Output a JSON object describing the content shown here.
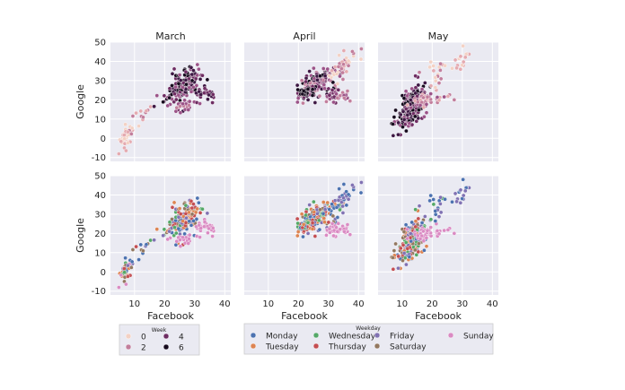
{
  "chart_data": {
    "type": "scatter",
    "grid": true,
    "xlabel": "Facebook",
    "ylabel": "Google",
    "xlim": [
      2,
      42
    ],
    "ylim": [
      -12,
      50
    ],
    "xticks": [
      10,
      20,
      30,
      40
    ],
    "yticks": [
      -10,
      0,
      10,
      20,
      30,
      40,
      50
    ],
    "columns": [
      "March",
      "April",
      "May"
    ],
    "rows": [
      {
        "hue": "week",
        "legend_title": "Week"
      },
      {
        "hue": "weekday",
        "legend_title": "Weekday"
      }
    ],
    "week_legend": {
      "title": "Week",
      "entries": [
        {
          "label": "0",
          "color": "#f3d1c4"
        },
        {
          "label": "2",
          "color": "#c27e9c"
        },
        {
          "label": "4",
          "color": "#6e2c62"
        },
        {
          "label": "6",
          "color": "#160a1d"
        }
      ],
      "palette": [
        "#f3d1c4",
        "#e4aab0",
        "#c27e9c",
        "#9b5388",
        "#6e2c62",
        "#3e1844",
        "#160a1d"
      ]
    },
    "weekday_legend": {
      "title": "Weekday",
      "entries": [
        {
          "label": "Monday",
          "color": "#4c72b0"
        },
        {
          "label": "Tuesday",
          "color": "#dd8452"
        },
        {
          "label": "Wednesday",
          "color": "#55a868"
        },
        {
          "label": "Thursday",
          "color": "#c44e52"
        },
        {
          "label": "Friday",
          "color": "#8172b3"
        },
        {
          "label": "Saturday",
          "color": "#937860"
        },
        {
          "label": "Sunday",
          "color": "#da8bc3"
        }
      ]
    },
    "clusters": {
      "March": [
        {
          "cx": 7,
          "cy": 1,
          "sx": 1.2,
          "sy": 3,
          "rho": 0.2,
          "n": 30,
          "week": [
            0,
            1
          ],
          "weekday": [
            0,
            1,
            2,
            3,
            4,
            5,
            6
          ]
        },
        {
          "cx": 9,
          "cy": 6,
          "sx": 1.0,
          "sy": 3,
          "rho": 0.5,
          "n": 12,
          "week": [
            0,
            1,
            2
          ],
          "weekday": [
            0,
            1,
            2,
            3,
            4,
            5,
            6
          ]
        },
        {
          "cx": 13,
          "cy": 13,
          "sx": 1.0,
          "sy": 2,
          "rho": 0.5,
          "n": 8,
          "week": [
            1,
            2
          ],
          "weekday": [
            0,
            1,
            2,
            3,
            4,
            5
          ]
        },
        {
          "cx": 26,
          "cy": 27,
          "sx": 3.0,
          "sy": 4.5,
          "rho": 0.6,
          "n": 170,
          "week": [
            3,
            4,
            5,
            6
          ],
          "weekday": [
            0,
            1,
            2,
            3,
            4,
            5
          ]
        },
        {
          "cx": 33,
          "cy": 23,
          "sx": 2.0,
          "sy": 1.6,
          "rho": 0.1,
          "n": 30,
          "week": [
            4,
            5
          ],
          "weekday": [
            6
          ]
        },
        {
          "cx": 26,
          "cy": 17,
          "sx": 2.5,
          "sy": 1.4,
          "rho": 0.1,
          "n": 22,
          "week": [
            2,
            3
          ],
          "weekday": [
            6
          ]
        }
      ],
      "April": [
        {
          "cx": 26,
          "cy": 28,
          "sx": 3.0,
          "sy": 3.5,
          "rho": 0.6,
          "n": 180,
          "week": [
            2,
            3,
            4,
            5,
            6
          ],
          "weekday": [
            0,
            1,
            2,
            3,
            4,
            5
          ]
        },
        {
          "cx": 34,
          "cy": 37,
          "sx": 2.5,
          "sy": 4,
          "rho": 0.6,
          "n": 40,
          "week": [
            0,
            1,
            2
          ],
          "weekday": [
            0,
            4
          ]
        },
        {
          "cx": 33,
          "cy": 22,
          "sx": 2.5,
          "sy": 1.5,
          "rho": 0.1,
          "n": 40,
          "week": [
            2,
            3,
            4
          ],
          "weekday": [
            6
          ]
        },
        {
          "cx": 22,
          "cy": 24,
          "sx": 1.2,
          "sy": 1.5,
          "rho": 0.2,
          "n": 20,
          "week": [
            6
          ],
          "weekday": [
            0,
            1,
            2,
            3
          ]
        }
      ],
      "May": [
        {
          "cx": 13,
          "cy": 16,
          "sx": 2.5,
          "sy": 6,
          "rho": 0.6,
          "n": 210,
          "week": [
            3,
            4,
            5,
            6
          ],
          "weekday": [
            0,
            1,
            2,
            3,
            4,
            5
          ]
        },
        {
          "cx": 19,
          "cy": 20,
          "sx": 3.0,
          "sy": 1.8,
          "rho": 0.1,
          "n": 45,
          "week": [
            1,
            2,
            3
          ],
          "weekday": [
            6
          ]
        },
        {
          "cx": 30,
          "cy": 40,
          "sx": 1.5,
          "sy": 3,
          "rho": 0.6,
          "n": 16,
          "week": [
            0,
            1
          ],
          "weekday": [
            0,
            4
          ]
        },
        {
          "cx": 21,
          "cy": 34,
          "sx": 2.0,
          "sy": 4,
          "rho": 0.5,
          "n": 18,
          "week": [
            0,
            1,
            2
          ],
          "weekday": [
            0,
            2,
            4
          ]
        }
      ]
    }
  }
}
